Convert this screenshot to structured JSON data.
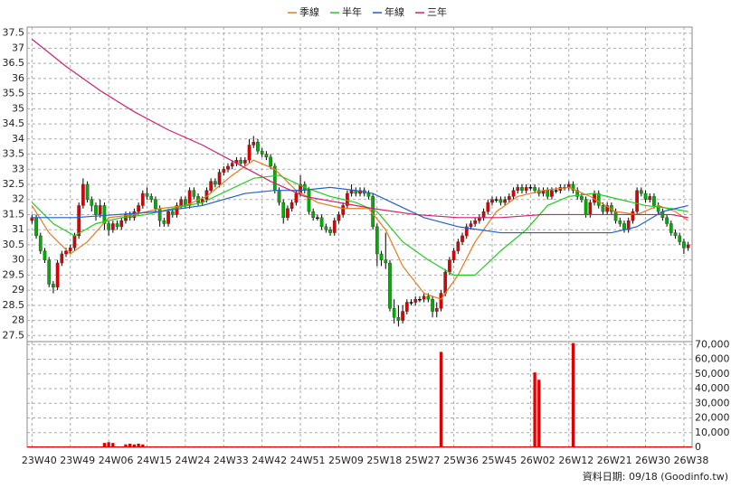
{
  "chart_data": {
    "type": "candlestick",
    "legend": [
      "季線",
      "半年",
      "年線",
      "三年"
    ],
    "footer": "資料日期: 09/18 (Goodinfo.tw)",
    "categories": [
      "23W40",
      null,
      null,
      null,
      null,
      null,
      null,
      null,
      null,
      "23W49",
      null,
      null,
      null,
      null,
      null,
      null,
      null,
      null,
      "24W06",
      null,
      null,
      null,
      null,
      null,
      null,
      null,
      null,
      "24W15",
      null,
      null,
      null,
      null,
      null,
      null,
      null,
      null,
      "24W24",
      null,
      null,
      null,
      null,
      null,
      null,
      null,
      null,
      "24W33",
      null,
      null,
      null,
      null,
      null,
      null,
      null,
      null,
      "24W42",
      null,
      null,
      null,
      null,
      null,
      null,
      null,
      null,
      "24W51",
      null,
      null,
      null,
      null,
      null,
      null,
      null,
      null,
      "25W09",
      null,
      null,
      null,
      null,
      null,
      null,
      null,
      null,
      "25W18",
      null,
      null,
      null,
      null,
      null,
      null,
      null,
      null,
      "25W27",
      null,
      null,
      null,
      null,
      null,
      null,
      null,
      null,
      "25W36",
      null,
      null,
      null,
      null,
      null,
      null,
      null,
      null,
      "25W45",
      null,
      null,
      null,
      null,
      null,
      null,
      null,
      null,
      "26W02",
      null,
      null,
      null,
      null,
      null,
      null,
      null,
      null,
      "26W12",
      null,
      null,
      null,
      null,
      null,
      null,
      null,
      null,
      "26W21",
      null,
      null,
      null,
      null,
      null,
      null,
      null,
      null,
      "26W30",
      null,
      null,
      null,
      null,
      null,
      null,
      null,
      null,
      "26W38",
      null
    ],
    "open": [
      31.3,
      31.4,
      30.8,
      30.3,
      30.0,
      29.2,
      29.1,
      29.9,
      30.2,
      30.3,
      30.4,
      30.8,
      31.8,
      32.5,
      32.0,
      31.8,
      31.5,
      31.8,
      31.2,
      31.0,
      31.2,
      31.1,
      31.3,
      31.5,
      31.4,
      31.6,
      31.8,
      32.2,
      32.1,
      32.0,
      31.7,
      31.3,
      31.2,
      31.6,
      31.5,
      31.8,
      32.0,
      31.8,
      32.3,
      32.1,
      31.9,
      32.0,
      32.3,
      32.6,
      32.5,
      32.9,
      33.0,
      33.1,
      33.2,
      33.3,
      33.2,
      33.3,
      33.8,
      33.9,
      33.6,
      33.5,
      33.4,
      33.1,
      32.3,
      31.9,
      31.4,
      31.7,
      31.9,
      32.2,
      32.5,
      32.3,
      31.6,
      31.4,
      31.4,
      31.1,
      31.0,
      30.9,
      31.3,
      31.5,
      31.8,
      32.2,
      32.3,
      32.2,
      32.3,
      32.2,
      32.1,
      31.1,
      30.2,
      30.0,
      29.9,
      28.4,
      28.1,
      28.0,
      28.3,
      28.6,
      28.6,
      28.7,
      28.7,
      28.8,
      28.7,
      28.3,
      28.4,
      28.9,
      29.6,
      30.0,
      30.3,
      30.6,
      30.8,
      31.1,
      31.2,
      31.3,
      31.4,
      31.6,
      31.9,
      32.0,
      32.0,
      31.9,
      32.0,
      32.1,
      32.3,
      32.4,
      32.3,
      32.4,
      32.4,
      32.3,
      32.2,
      32.3,
      32.1,
      32.3,
      32.3,
      32.4,
      32.4,
      32.5,
      32.3,
      32.1,
      32.0,
      31.5,
      31.9,
      32.2,
      31.8,
      31.6,
      31.8,
      31.6,
      31.3,
      31.2,
      31.0,
      31.3,
      31.6,
      32.3,
      32.2,
      32.0,
      32.1,
      31.8,
      31.6,
      31.4,
      31.2,
      30.9,
      30.8,
      30.6,
      30.4
    ],
    "high": [
      31.5,
      31.5,
      30.9,
      30.4,
      30.1,
      29.3,
      30.0,
      30.3,
      30.4,
      30.5,
      30.9,
      31.9,
      32.7,
      32.6,
      32.1,
      31.9,
      32.0,
      31.9,
      31.3,
      31.3,
      31.3,
      31.4,
      31.6,
      31.6,
      31.7,
      31.9,
      32.3,
      32.4,
      32.2,
      32.1,
      31.8,
      31.4,
      31.7,
      31.7,
      31.9,
      32.1,
      32.1,
      32.4,
      32.4,
      32.2,
      32.1,
      32.4,
      32.7,
      32.7,
      33.0,
      33.1,
      33.2,
      33.3,
      33.4,
      33.4,
      33.4,
      34.0,
      34.1,
      34.0,
      33.7,
      33.6,
      33.5,
      33.2,
      32.4,
      32.0,
      31.8,
      32.0,
      32.3,
      32.8,
      32.6,
      32.4,
      31.7,
      31.5,
      31.5,
      31.2,
      31.1,
      31.4,
      31.6,
      31.9,
      32.3,
      32.5,
      32.4,
      32.4,
      32.4,
      32.3,
      32.2,
      31.2,
      30.3,
      30.9,
      30.0,
      28.7,
      28.5,
      28.5,
      28.7,
      28.7,
      28.8,
      28.8,
      28.9,
      28.9,
      28.8,
      28.6,
      29.0,
      29.7,
      30.1,
      30.4,
      30.7,
      30.9,
      31.2,
      31.3,
      31.4,
      31.5,
      31.7,
      32.0,
      32.1,
      32.1,
      32.1,
      32.1,
      32.2,
      32.4,
      32.5,
      32.5,
      32.5,
      32.5,
      32.5,
      32.4,
      32.4,
      32.4,
      32.4,
      32.4,
      32.5,
      32.5,
      32.6,
      32.6,
      32.4,
      32.2,
      32.1,
      32.0,
      32.3,
      32.3,
      31.9,
      31.9,
      31.9,
      31.7,
      31.4,
      31.3,
      31.4,
      31.7,
      32.4,
      32.4,
      32.3,
      32.2,
      32.2,
      31.9,
      31.7,
      31.5,
      31.3,
      31.0,
      30.9,
      30.7,
      30.6
    ],
    "low": [
      31.2,
      30.7,
      30.2,
      29.9,
      29.1,
      28.9,
      29.0,
      29.8,
      30.1,
      30.2,
      30.3,
      30.7,
      31.7,
      31.9,
      31.6,
      31.3,
      31.4,
      31.0,
      30.8,
      30.9,
      31.0,
      31.0,
      31.2,
      31.3,
      31.3,
      31.5,
      31.7,
      32.0,
      31.9,
      31.6,
      31.1,
      31.1,
      31.1,
      31.4,
      31.4,
      31.7,
      31.7,
      31.7,
      32.0,
      31.8,
      31.8,
      31.9,
      32.2,
      32.4,
      32.4,
      32.8,
      32.9,
      33.0,
      33.1,
      33.1,
      33.1,
      33.2,
      33.7,
      33.5,
      33.4,
      33.3,
      33.0,
      32.2,
      31.8,
      31.2,
      31.3,
      31.6,
      31.8,
      32.1,
      32.2,
      31.5,
      31.3,
      31.3,
      31.0,
      30.9,
      30.8,
      30.8,
      31.2,
      31.4,
      31.7,
      32.1,
      32.1,
      32.1,
      32.1,
      32.0,
      31.0,
      29.8,
      29.8,
      29.7,
      28.3,
      27.9,
      27.8,
      27.9,
      28.2,
      28.5,
      28.5,
      28.6,
      28.6,
      28.6,
      28.1,
      28.1,
      28.3,
      28.8,
      29.5,
      29.9,
      30.2,
      30.5,
      30.7,
      31.0,
      31.1,
      31.2,
      31.3,
      31.5,
      31.8,
      31.9,
      31.8,
      31.8,
      31.9,
      32.0,
      32.2,
      32.2,
      32.2,
      32.3,
      32.2,
      32.1,
      32.1,
      32.0,
      32.0,
      32.2,
      32.2,
      32.3,
      32.3,
      32.2,
      32.0,
      31.9,
      31.4,
      31.4,
      31.8,
      31.7,
      31.5,
      31.5,
      31.5,
      31.2,
      31.1,
      30.9,
      30.9,
      31.2,
      31.5,
      32.1,
      31.9,
      31.9,
      31.7,
      31.5,
      31.3,
      31.1,
      30.8,
      30.7,
      30.5,
      30.2,
      30.3
    ],
    "close": [
      31.4,
      30.8,
      30.3,
      30.0,
      29.2,
      29.1,
      29.9,
      30.2,
      30.3,
      30.4,
      30.8,
      31.8,
      32.5,
      32.0,
      31.8,
      31.5,
      31.8,
      31.2,
      31.0,
      31.2,
      31.1,
      31.3,
      31.5,
      31.4,
      31.6,
      31.8,
      32.2,
      32.1,
      32.0,
      31.7,
      31.3,
      31.2,
      31.6,
      31.5,
      31.8,
      32.0,
      31.8,
      32.3,
      32.1,
      31.9,
      32.0,
      32.3,
      32.6,
      32.5,
      32.9,
      33.0,
      33.1,
      33.2,
      33.3,
      33.2,
      33.3,
      33.8,
      33.9,
      33.6,
      33.5,
      33.4,
      33.1,
      32.3,
      31.9,
      31.4,
      31.7,
      31.9,
      32.2,
      32.5,
      32.3,
      31.6,
      31.4,
      31.4,
      31.1,
      31.0,
      30.9,
      31.3,
      31.5,
      31.8,
      32.2,
      32.3,
      32.2,
      32.3,
      32.2,
      32.1,
      31.1,
      30.2,
      30.0,
      29.9,
      28.4,
      28.1,
      28.0,
      28.3,
      28.6,
      28.6,
      28.7,
      28.7,
      28.8,
      28.7,
      28.3,
      28.4,
      28.9,
      29.6,
      30.0,
      30.3,
      30.6,
      30.8,
      31.1,
      31.2,
      31.3,
      31.4,
      31.6,
      31.9,
      32.0,
      32.0,
      31.9,
      32.0,
      32.1,
      32.3,
      32.4,
      32.3,
      32.4,
      32.4,
      32.3,
      32.2,
      32.3,
      32.1,
      32.3,
      32.3,
      32.4,
      32.4,
      32.5,
      32.3,
      32.1,
      32.0,
      31.5,
      31.9,
      32.2,
      31.8,
      31.6,
      31.8,
      31.6,
      31.3,
      31.2,
      31.0,
      31.3,
      31.6,
      32.3,
      32.2,
      32.0,
      32.1,
      31.8,
      31.6,
      31.4,
      31.2,
      30.9,
      30.8,
      30.6,
      30.4,
      30.5
    ],
    "up_color": "#e00000",
    "down_color": "#00b000",
    "flat_color": "#000000",
    "series": [
      {
        "name": "季線",
        "color": "#e87a1e",
        "x": [
          0,
          4,
          9,
          13,
          18,
          24,
          30,
          36,
          41,
          47,
          52,
          57,
          62,
          67,
          73,
          79,
          83,
          87,
          92,
          96,
          100,
          104,
          109,
          114,
          120,
          126,
          131,
          137,
          142,
          147,
          151,
          154
        ],
        "values": [
          31.8,
          30.9,
          30.2,
          30.6,
          31.4,
          31.5,
          31.7,
          31.8,
          32.1,
          32.8,
          33.3,
          33.0,
          32.3,
          31.9,
          31.7,
          31.7,
          31.0,
          29.8,
          28.9,
          28.7,
          29.5,
          30.6,
          31.6,
          32.1,
          32.3,
          32.4,
          32.1,
          31.6,
          31.5,
          31.8,
          31.6,
          31.3
        ]
      },
      {
        "name": "半年",
        "color": "#22cc22",
        "x": [
          0,
          5,
          10,
          15,
          21,
          27,
          33,
          40,
          46,
          52,
          58,
          64,
          70,
          76,
          81,
          87,
          93,
          99,
          104,
          110,
          116,
          121,
          126,
          132,
          138,
          144,
          150,
          154
        ],
        "values": [
          31.9,
          31.2,
          30.8,
          31.2,
          31.4,
          31.5,
          31.7,
          31.9,
          32.3,
          32.7,
          32.8,
          32.4,
          32.1,
          31.9,
          31.6,
          30.6,
          30.0,
          29.5,
          29.5,
          30.3,
          31.0,
          31.8,
          32.1,
          32.2,
          32.0,
          31.8,
          31.7,
          31.6
        ]
      },
      {
        "name": "年線",
        "color": "#1f5fd0",
        "x": [
          0,
          10,
          20,
          30,
          40,
          50,
          57,
          63,
          70,
          76,
          80,
          86,
          92,
          100,
          110,
          120,
          130,
          136,
          142,
          148,
          154
        ],
        "values": [
          31.4,
          31.4,
          31.5,
          31.6,
          31.8,
          32.2,
          32.3,
          32.3,
          32.4,
          32.3,
          32.2,
          31.8,
          31.4,
          31.1,
          30.9,
          30.9,
          30.9,
          30.9,
          31.1,
          31.6,
          31.8
        ]
      },
      {
        "name": "三年",
        "color": "#d0206e",
        "x": [
          0,
          8,
          16,
          24,
          32,
          40,
          48,
          56,
          64,
          72,
          80,
          90,
          100,
          110,
          120,
          130,
          140,
          150,
          154
        ],
        "values": [
          37.3,
          36.4,
          35.6,
          34.9,
          34.3,
          33.8,
          33.2,
          32.6,
          32.1,
          31.9,
          31.7,
          31.5,
          31.4,
          31.4,
          31.5,
          31.5,
          31.5,
          31.5,
          31.4
        ]
      }
    ],
    "volume": {
      "color": "#e00000",
      "x": [
        17,
        18,
        19,
        22,
        23,
        24,
        25,
        26,
        96,
        118,
        119,
        127
      ],
      "values": [
        3000,
        3500,
        3000,
        2000,
        2500,
        2000,
        2500,
        2000,
        65000,
        51000,
        46000,
        71000
      ]
    },
    "ylim": [
      27.3,
      37.7
    ],
    "yticks": [
      27.5,
      28,
      28.5,
      29,
      29.5,
      30,
      30.5,
      31,
      31.5,
      32,
      32.5,
      33,
      33.5,
      34,
      34.5,
      35,
      35.5,
      36,
      36.5,
      37,
      37.5
    ],
    "y2lim": [
      0,
      72000
    ],
    "y2ticks": [
      {
        "value": 0,
        "label": "0"
      },
      {
        "value": 10000,
        "label": "10,000"
      },
      {
        "value": 20000,
        "label": "20,000"
      },
      {
        "value": 30000,
        "label": "30,000"
      },
      {
        "value": 40000,
        "label": "40,000"
      },
      {
        "value": 50000,
        "label": "50,000"
      },
      {
        "value": 60000,
        "label": "60,000"
      },
      {
        "value": 70000,
        "label": "70,000"
      }
    ],
    "grid": true
  }
}
